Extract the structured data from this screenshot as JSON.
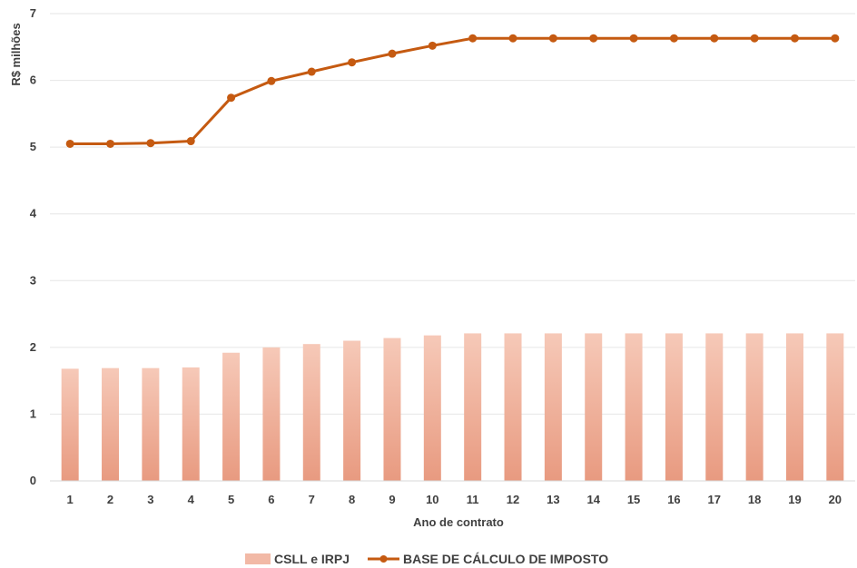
{
  "chart_data": {
    "type": "bar",
    "categories": [
      "1",
      "2",
      "3",
      "4",
      "5",
      "6",
      "7",
      "8",
      "9",
      "10",
      "11",
      "12",
      "13",
      "14",
      "15",
      "16",
      "17",
      "18",
      "19",
      "20"
    ],
    "series": [
      {
        "name": "CSLL e IRPJ",
        "type": "bar",
        "color": "#F2B9A6",
        "values": [
          1.68,
          1.69,
          1.69,
          1.7,
          1.92,
          2.0,
          2.05,
          2.1,
          2.14,
          2.18,
          2.21,
          2.21,
          2.21,
          2.21,
          2.21,
          2.21,
          2.21,
          2.21,
          2.21,
          2.21
        ]
      },
      {
        "name": "BASE DE CÁLCULO DE IMPOSTO",
        "type": "line",
        "color": "#C55A11",
        "values": [
          5.05,
          5.05,
          5.06,
          5.09,
          5.74,
          5.99,
          6.13,
          6.27,
          6.4,
          6.52,
          6.63,
          6.63,
          6.63,
          6.63,
          6.63,
          6.63,
          6.63,
          6.63,
          6.63,
          6.63
        ]
      }
    ],
    "xlabel": "Ano de contrato",
    "ylabel": "R$ milhões",
    "ylim": [
      0,
      7
    ],
    "yticks": [
      "0",
      "1",
      "2",
      "3",
      "4",
      "5",
      "6",
      "7"
    ],
    "grid": true,
    "legend_position": "bottom"
  }
}
